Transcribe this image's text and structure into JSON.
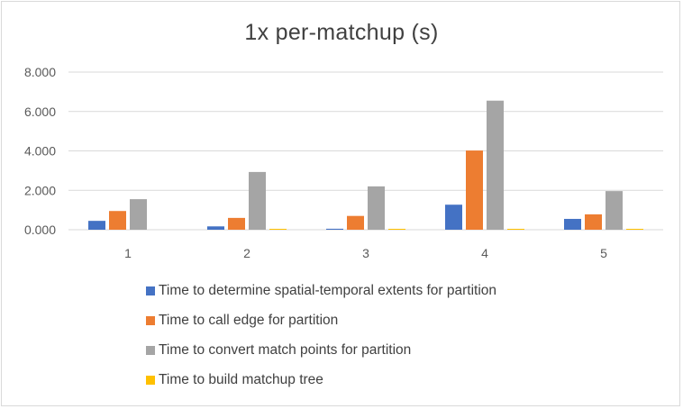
{
  "chart_data": {
    "type": "bar",
    "title": "1x per-matchup (s)",
    "xlabel": "",
    "ylabel": "",
    "categories": [
      "1",
      "2",
      "3",
      "4",
      "5"
    ],
    "ylim": [
      0,
      8
    ],
    "yticks": [
      0,
      2,
      4,
      6,
      8
    ],
    "ytick_labels": [
      "0.000",
      "2.000",
      "4.000",
      "6.000",
      "8.000"
    ],
    "grid": true,
    "legend_position": "bottom",
    "series": [
      {
        "name": "Time to determine spatial-temporal extents for partition",
        "color": "#4472c4",
        "values": [
          0.45,
          0.17,
          0.05,
          1.27,
          0.55
        ]
      },
      {
        "name": "Time to call edge for partition",
        "color": "#ed7d31",
        "values": [
          0.95,
          0.6,
          0.7,
          4.02,
          0.78
        ]
      },
      {
        "name": "Time to convert match points for partition",
        "color": "#a5a5a5",
        "values": [
          1.55,
          2.93,
          2.2,
          6.55,
          1.96
        ]
      },
      {
        "name": "Time to build matchup tree",
        "color": "#ffc000",
        "values": [
          0.0,
          0.03,
          0.03,
          0.03,
          0.03
        ]
      }
    ]
  }
}
